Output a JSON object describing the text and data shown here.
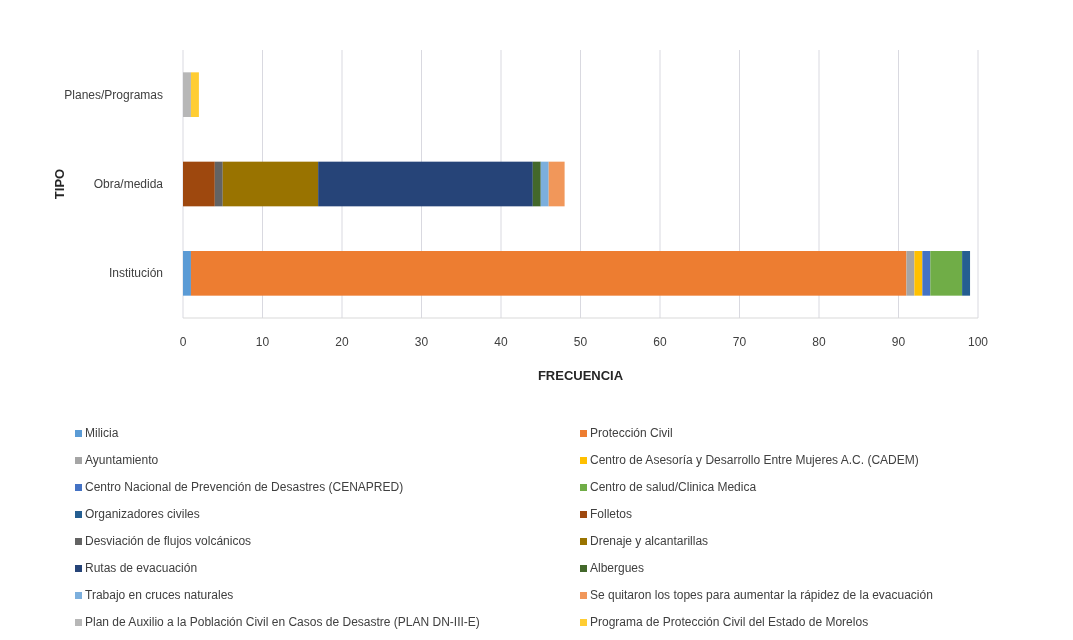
{
  "chart_data": {
    "type": "bar",
    "orientation": "horizontal",
    "stacked": true,
    "xlabel": "FRECUENCIA",
    "ylabel": "TIPO",
    "categories": [
      "Planes/Programas",
      "Obra/medida",
      "Institución"
    ],
    "xlim": [
      0,
      100
    ],
    "xticks": [
      0,
      10,
      20,
      30,
      40,
      50,
      60,
      70,
      80,
      90,
      100
    ],
    "grid": "x",
    "legend": "bottom",
    "series": [
      {
        "name": "Milicia",
        "color": "#5b9bd5",
        "values": [
          null,
          null,
          1
        ]
      },
      {
        "name": "Protección Civil",
        "color": "#ed7d31",
        "values": [
          null,
          null,
          90
        ]
      },
      {
        "name": "Ayuntamiento",
        "color": "#a5a5a5",
        "values": [
          null,
          null,
          1
        ]
      },
      {
        "name": "Centro de Asesoría y Desarrollo Entre Mujeres A.C. (CADEM)",
        "color": "#ffc000",
        "values": [
          null,
          null,
          1
        ]
      },
      {
        "name": "Centro Nacional de Prevención de Desastres (CENAPRED)",
        "color": "#4472c4",
        "values": [
          null,
          null,
          1
        ]
      },
      {
        "name": "Centro de salud/Clinica Medica",
        "color": "#70ad47",
        "values": [
          null,
          null,
          4
        ]
      },
      {
        "name": "Organizadores civiles",
        "color": "#255e91",
        "values": [
          null,
          null,
          1
        ]
      },
      {
        "name": "Folletos",
        "color": "#9e480e",
        "values": [
          null,
          4,
          null
        ]
      },
      {
        "name": "Desviación de flujos volcánicos",
        "color": "#636363",
        "values": [
          null,
          1,
          null
        ]
      },
      {
        "name": "Drenaje y alcantarillas",
        "color": "#997300",
        "values": [
          null,
          12,
          null
        ]
      },
      {
        "name": "Rutas de evacuación",
        "color": "#264478",
        "values": [
          null,
          27,
          null
        ]
      },
      {
        "name": "Albergues",
        "color": "#43682b",
        "values": [
          null,
          1,
          null
        ]
      },
      {
        "name": "Trabajo en cruces naturales",
        "color": "#7cafdd",
        "values": [
          null,
          1,
          null
        ]
      },
      {
        "name": "Se quitaron los topes para aumentar la rápidez de la evacuación",
        "color": "#f1975a",
        "values": [
          null,
          2,
          null
        ]
      },
      {
        "name": "Plan de Auxilio a la Población Civil en Casos de Desastre (PLAN DN-III-E)",
        "color": "#b7b7b7",
        "values": [
          1,
          null,
          null
        ]
      },
      {
        "name": "Programa de Protección Civil del Estado de Morelos",
        "color": "#ffcd33",
        "values": [
          1,
          null,
          null
        ]
      }
    ]
  }
}
